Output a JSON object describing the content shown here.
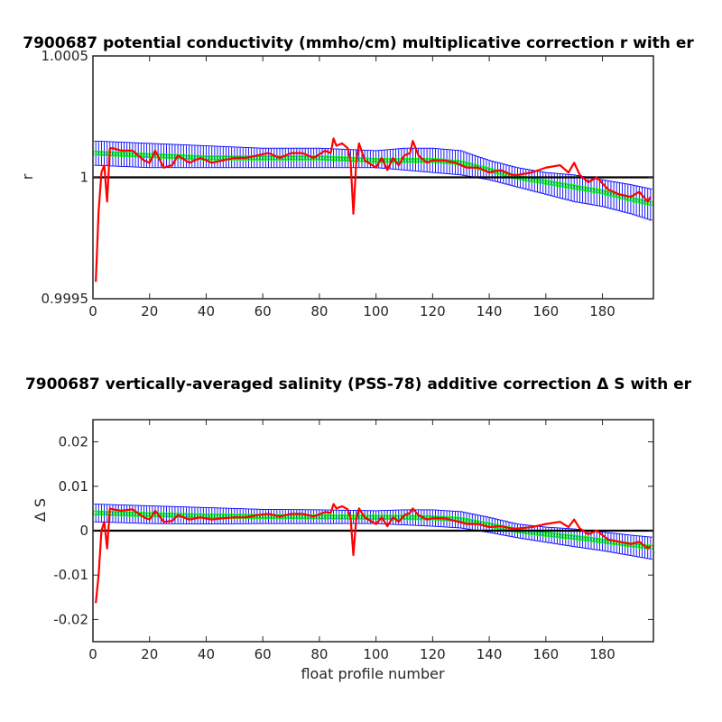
{
  "chart_data": [
    {
      "type": "line",
      "title": "7900687 potential conductivity (mmho/cm) multiplicative correction r with er",
      "xlabel": "",
      "ylabel": "r",
      "xlim": [
        0,
        198
      ],
      "ylim": [
        0.9995,
        1.0005
      ],
      "xticks": [
        0,
        20,
        40,
        60,
        80,
        100,
        120,
        140,
        160,
        180
      ],
      "xtick_labels": [
        "0",
        "20",
        "40",
        "60",
        "80",
        "100",
        "120",
        "140",
        "160",
        "180"
      ],
      "yticks": [
        0.9995,
        1.0,
        1.0005
      ],
      "ytick_labels": [
        "0.9995",
        "1",
        "1.0005"
      ],
      "reference_line": 1.0,
      "grid": false,
      "colors": {
        "correction": "#ff0000",
        "fit": "#00ff00",
        "error": "#0000ff",
        "reference": "#000000"
      },
      "series": [
        {
          "role": "correction",
          "x": [
            1,
            2,
            3,
            4,
            5,
            6,
            7,
            10,
            14,
            18,
            20,
            22,
            25,
            28,
            30,
            34,
            38,
            42,
            46,
            50,
            54,
            58,
            62,
            66,
            70,
            74,
            78,
            82,
            84,
            85,
            86,
            88,
            90,
            91,
            92,
            93,
            94,
            96,
            100,
            102,
            104,
            106,
            108,
            110,
            112,
            113,
            115,
            118,
            120,
            124,
            128,
            132,
            136,
            140,
            144,
            148,
            150,
            155,
            160,
            165,
            168,
            170,
            172,
            175,
            178,
            182,
            186,
            190,
            193,
            196,
            197
          ],
          "y": [
            0.99957,
            0.99986,
            1.00002,
            1.00005,
            0.9999,
            1.00012,
            1.00012,
            1.00011,
            1.00011,
            1.00007,
            1.00006,
            1.00011,
            1.00004,
            1.00005,
            1.00009,
            1.00006,
            1.00008,
            1.00006,
            1.00007,
            1.00008,
            1.00008,
            1.00009,
            1.0001,
            1.00008,
            1.0001,
            1.0001,
            1.00008,
            1.00011,
            1.0001,
            1.00016,
            1.00013,
            1.00014,
            1.00012,
            1.00007,
            0.99985,
            1.00006,
            1.00014,
            1.00007,
            1.00004,
            1.00008,
            1.00003,
            1.00008,
            1.00005,
            1.00009,
            1.0001,
            1.00015,
            1.00009,
            1.00006,
            1.00007,
            1.00007,
            1.00006,
            1.00004,
            1.00004,
            1.00002,
            1.00003,
            1.00001,
            1.00001,
            1.00002,
            1.00004,
            1.00005,
            1.00002,
            1.00006,
            1.00001,
            0.99998,
            1.0,
            0.99995,
            0.99993,
            0.99992,
            0.99994,
            0.9999,
            0.99992
          ]
        },
        {
          "role": "fit",
          "x": [
            0,
            20,
            40,
            60,
            80,
            100,
            110,
            120,
            130,
            140,
            150,
            160,
            170,
            180,
            190,
            198
          ],
          "y": [
            1.0001,
            1.00009,
            1.00008,
            1.00008,
            1.00008,
            1.00007,
            1.00007,
            1.00007,
            1.00006,
            1.00003,
            1.0,
            0.99998,
            0.99996,
            0.99994,
            0.99991,
            0.99989
          ]
        },
        {
          "role": "error_upper",
          "x": [
            0,
            20,
            40,
            60,
            80,
            100,
            110,
            120,
            130,
            140,
            150,
            160,
            170,
            180,
            190,
            198
          ],
          "y": [
            1.00015,
            1.00014,
            1.00013,
            1.00012,
            1.00012,
            1.00011,
            1.00012,
            1.00012,
            1.00011,
            1.00007,
            1.00004,
            1.00002,
            1.00001,
            0.99999,
            0.99997,
            0.99995
          ]
        },
        {
          "role": "error_lower",
          "x": [
            0,
            20,
            40,
            60,
            80,
            100,
            110,
            120,
            130,
            140,
            150,
            160,
            170,
            180,
            190,
            198
          ],
          "y": [
            1.00005,
            1.00004,
            1.00004,
            1.00004,
            1.00004,
            1.00004,
            1.00003,
            1.00002,
            1.00001,
            0.99999,
            0.99996,
            0.99993,
            0.9999,
            0.99988,
            0.99985,
            0.99982
          ]
        }
      ]
    },
    {
      "type": "line",
      "title": "7900687 vertically-averaged salinity (PSS-78) additive correction Δ S with er",
      "xlabel": "float profile number",
      "ylabel": "Δ S",
      "xlim": [
        0,
        198
      ],
      "ylim": [
        -0.025,
        0.025
      ],
      "xticks": [
        0,
        20,
        40,
        60,
        80,
        100,
        120,
        140,
        160,
        180
      ],
      "xtick_labels": [
        "0",
        "20",
        "40",
        "60",
        "80",
        "100",
        "120",
        "140",
        "160",
        "180"
      ],
      "yticks": [
        -0.02,
        -0.01,
        0,
        0.01,
        0.02
      ],
      "ytick_labels": [
        "-0.02",
        "-0.01",
        "0",
        "0.01",
        "0.02"
      ],
      "reference_line": 0,
      "grid": false,
      "colors": {
        "correction": "#ff0000",
        "fit": "#00ff00",
        "error": "#0000ff",
        "reference": "#000000"
      },
      "series": [
        {
          "role": "correction",
          "x": [
            1,
            2,
            3,
            4,
            5,
            6,
            7,
            10,
            14,
            18,
            20,
            22,
            25,
            28,
            30,
            34,
            38,
            42,
            46,
            50,
            54,
            58,
            62,
            66,
            70,
            74,
            78,
            82,
            84,
            85,
            86,
            88,
            90,
            91,
            92,
            93,
            94,
            96,
            100,
            102,
            104,
            106,
            108,
            110,
            112,
            113,
            115,
            118,
            120,
            124,
            128,
            132,
            136,
            140,
            144,
            148,
            150,
            155,
            160,
            165,
            168,
            170,
            172,
            175,
            178,
            182,
            186,
            190,
            193,
            196,
            197
          ],
          "y": [
            -0.0163,
            -0.01,
            0.0,
            0.002,
            -0.004,
            0.005,
            0.0048,
            0.0045,
            0.0048,
            0.003,
            0.0025,
            0.0045,
            0.002,
            0.0022,
            0.0035,
            0.0025,
            0.003,
            0.0025,
            0.0028,
            0.003,
            0.003,
            0.0035,
            0.0038,
            0.0032,
            0.0038,
            0.0038,
            0.0032,
            0.0042,
            0.004,
            0.006,
            0.005,
            0.0055,
            0.0048,
            0.003,
            -0.0055,
            0.0025,
            0.005,
            0.003,
            0.0015,
            0.003,
            0.001,
            0.003,
            0.002,
            0.0035,
            0.004,
            0.005,
            0.0035,
            0.0025,
            0.0028,
            0.0028,
            0.0022,
            0.0015,
            0.0015,
            0.0008,
            0.001,
            0.0005,
            0.0005,
            0.0008,
            0.0015,
            0.002,
            0.0008,
            0.0025,
            0.0005,
            -0.0008,
            0.0,
            -0.002,
            -0.0025,
            -0.003,
            -0.0025,
            -0.004,
            -0.0035
          ]
        },
        {
          "role": "fit",
          "x": [
            0,
            20,
            40,
            60,
            80,
            100,
            110,
            120,
            130,
            140,
            150,
            160,
            170,
            180,
            190,
            198
          ],
          "y": [
            0.004,
            0.0036,
            0.0033,
            0.0032,
            0.0031,
            0.003,
            0.003,
            0.0029,
            0.0025,
            0.0013,
            0.0,
            -0.0008,
            -0.0015,
            -0.0023,
            -0.0032,
            -0.0038
          ]
        },
        {
          "role": "error_upper",
          "x": [
            0,
            20,
            40,
            60,
            80,
            100,
            110,
            120,
            130,
            140,
            150,
            160,
            170,
            180,
            190,
            198
          ],
          "y": [
            0.006,
            0.0056,
            0.0052,
            0.0048,
            0.0047,
            0.0045,
            0.0047,
            0.0047,
            0.0043,
            0.003,
            0.0015,
            0.0008,
            0.0004,
            -0.0003,
            -0.001,
            -0.0015
          ]
        },
        {
          "role": "error_lower",
          "x": [
            0,
            20,
            40,
            60,
            80,
            100,
            110,
            120,
            130,
            140,
            150,
            160,
            170,
            180,
            190,
            198
          ],
          "y": [
            0.002,
            0.0016,
            0.0015,
            0.0016,
            0.0016,
            0.0016,
            0.0013,
            0.001,
            0.0006,
            -0.0004,
            -0.0016,
            -0.0026,
            -0.0036,
            -0.0045,
            -0.0056,
            -0.0065
          ]
        }
      ]
    }
  ]
}
